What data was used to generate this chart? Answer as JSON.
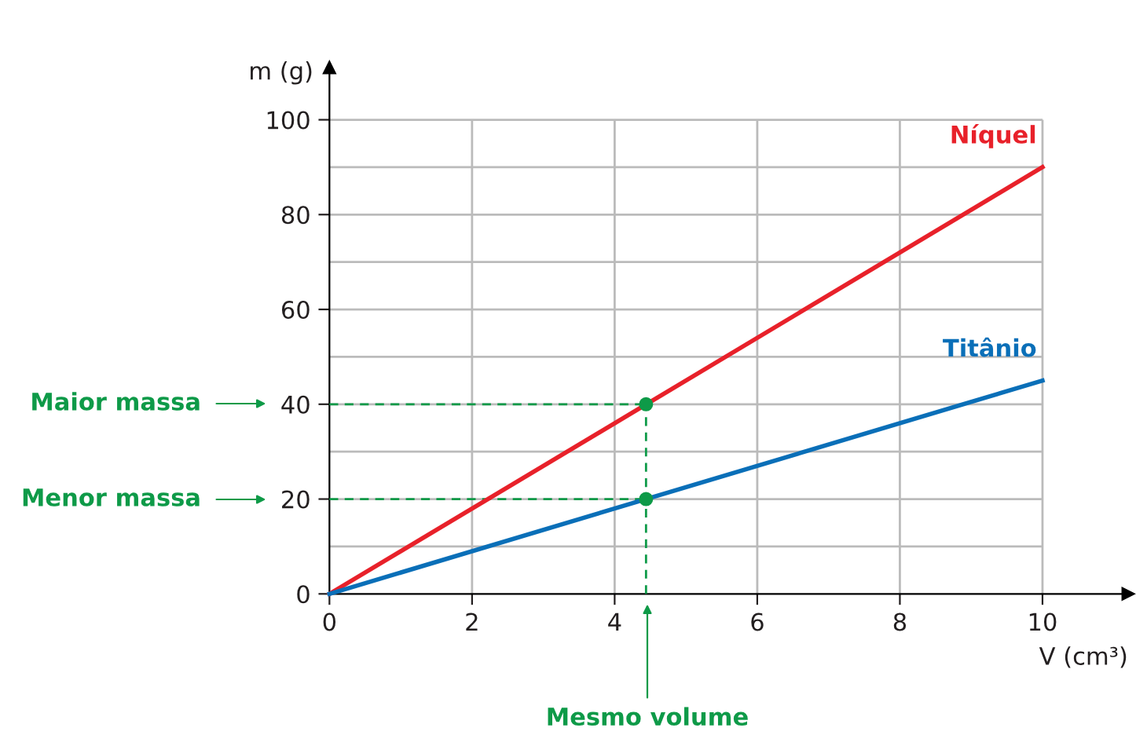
{
  "chart_data": {
    "type": "line",
    "xlabel": "V (cm³)",
    "ylabel": "m (g)",
    "xlim": [
      0,
      11.2
    ],
    "ylim": [
      0,
      111
    ],
    "xticks": [
      0,
      2,
      4,
      6,
      8,
      10
    ],
    "yticks": [
      0,
      {
        "value": 10,
        "label": null
      },
      20,
      {
        "value": 30,
        "label": null
      },
      40,
      {
        "value": 50,
        "label": null
      },
      60,
      {
        "value": 70,
        "label": null
      },
      80,
      {
        "value": 90,
        "label": null
      },
      100
    ],
    "grid": true,
    "legend": false,
    "marker": "none",
    "line_style": "solid",
    "series": [
      {
        "name": "Níquel",
        "color": "#e8212a",
        "x": [
          0,
          10
        ],
        "values": [
          0,
          90
        ]
      },
      {
        "name": "Titânio",
        "color": "#0a6fb8",
        "x": [
          0,
          10
        ],
        "values": [
          0,
          45
        ]
      },
      {
        "type": "line",
        "line_style": "dashed",
        "color": "#0e9a48",
        "x": [
          0,
          4.44
        ],
        "values": [
          40,
          40
        ]
      },
      {
        "type": "line",
        "line_style": "dashed",
        "color": "#0e9a48",
        "x": [
          0,
          4.44
        ],
        "values": [
          20,
          20
        ]
      },
      {
        "type": "line",
        "line_style": "dashed",
        "color": "#0e9a48",
        "x": [
          4.44,
          4.44
        ],
        "values": [
          0,
          40
        ]
      },
      {
        "type": "scatter",
        "marker": "circle",
        "color": "#0e9a48",
        "x": [
          4.44,
          4.44
        ],
        "values": [
          40,
          20
        ]
      }
    ],
    "annotations": [
      "Maior massa",
      "Menor massa",
      "Mesmo volume"
    ]
  }
}
